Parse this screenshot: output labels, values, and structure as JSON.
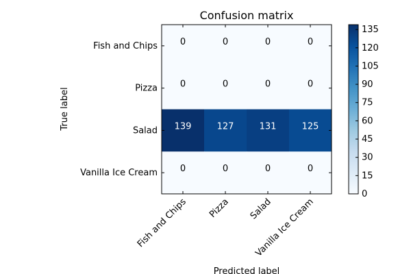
{
  "chart_data": {
    "type": "heatmap",
    "title": "Confusion matrix",
    "xlabel": "Predicted label",
    "ylabel": "True label",
    "x_categories": [
      "Fish and Chips",
      "Pizza",
      "Salad",
      "Vanilla Ice Cream"
    ],
    "y_categories": [
      "Fish and Chips",
      "Pizza",
      "Salad",
      "Vanilla Ice Cream"
    ],
    "values": [
      [
        0,
        0,
        0,
        0
      ],
      [
        0,
        0,
        0,
        0
      ],
      [
        139,
        127,
        131,
        125
      ],
      [
        0,
        0,
        0,
        0
      ]
    ],
    "colormap": "Blues",
    "colorbar": {
      "range": [
        0,
        139
      ],
      "ticks": [
        0,
        15,
        30,
        45,
        60,
        75,
        90,
        105,
        120,
        135
      ]
    }
  }
}
